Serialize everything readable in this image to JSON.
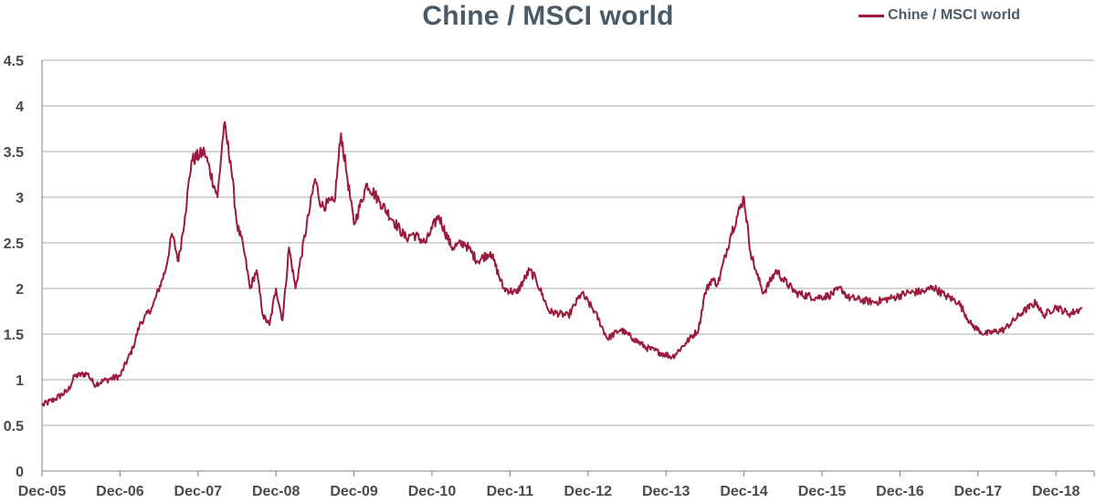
{
  "chart_data": {
    "type": "line",
    "title": "Chine / MSCI world",
    "xlabel": "",
    "ylabel": "",
    "legend": "top-right",
    "grid": true,
    "ylim": [
      0,
      4.5
    ],
    "yticks": [
      0,
      0.5,
      1,
      1.5,
      2,
      2.5,
      3,
      3.5,
      4,
      4.5
    ],
    "ytick_labels": [
      "0",
      "0.5",
      "1",
      "1.5",
      "2",
      "2.5",
      "3",
      "3.5",
      "4",
      "4.5"
    ],
    "xlim": [
      "2005-12",
      "2019-05"
    ],
    "xtick_labels": [
      "Dec-05",
      "Dec-06",
      "Dec-07",
      "Dec-08",
      "Dec-09",
      "Dec-10",
      "Dec-11",
      "Dec-12",
      "Dec-13",
      "Dec-14",
      "Dec-15",
      "Dec-16",
      "Dec-17",
      "Dec-18"
    ],
    "series": [
      {
        "name": "Chine / MSCI world",
        "color": "#9b1b3c",
        "points": [
          [
            "2005-12",
            0.72
          ],
          [
            "2006-02",
            0.79
          ],
          [
            "2006-04",
            0.88
          ],
          [
            "2006-05",
            1.04
          ],
          [
            "2006-07",
            1.07
          ],
          [
            "2006-08",
            0.95
          ],
          [
            "2006-10",
            1.0
          ],
          [
            "2006-12",
            1.04
          ],
          [
            "2007-02",
            1.35
          ],
          [
            "2007-03",
            1.6
          ],
          [
            "2007-05",
            1.8
          ],
          [
            "2007-07",
            2.2
          ],
          [
            "2007-08",
            2.6
          ],
          [
            "2007-09",
            2.3
          ],
          [
            "2007-10",
            2.8
          ],
          [
            "2007-11",
            3.4
          ],
          [
            "2008-01",
            3.5
          ],
          [
            "2008-03",
            3.0
          ],
          [
            "2008-04",
            3.8
          ],
          [
            "2008-05",
            3.4
          ],
          [
            "2008-06",
            2.7
          ],
          [
            "2008-07",
            2.45
          ],
          [
            "2008-08",
            2.0
          ],
          [
            "2008-09",
            2.2
          ],
          [
            "2008-10",
            1.7
          ],
          [
            "2008-11",
            1.6
          ],
          [
            "2008-12",
            2.0
          ],
          [
            "2009-01",
            1.65
          ],
          [
            "2009-02",
            2.45
          ],
          [
            "2009-03",
            2.0
          ],
          [
            "2009-05",
            2.8
          ],
          [
            "2009-06",
            3.2
          ],
          [
            "2009-07",
            2.9
          ],
          [
            "2009-09",
            2.95
          ],
          [
            "2009-10",
            3.7
          ],
          [
            "2009-11",
            3.2
          ],
          [
            "2009-12",
            2.7
          ],
          [
            "2010-02",
            3.15
          ],
          [
            "2010-04",
            2.95
          ],
          [
            "2010-06",
            2.75
          ],
          [
            "2010-08",
            2.55
          ],
          [
            "2010-09",
            2.6
          ],
          [
            "2010-11",
            2.5
          ],
          [
            "2011-01",
            2.8
          ],
          [
            "2011-03",
            2.45
          ],
          [
            "2011-05",
            2.5
          ],
          [
            "2011-07",
            2.3
          ],
          [
            "2011-09",
            2.4
          ],
          [
            "2011-11",
            2.0
          ],
          [
            "2012-01",
            1.95
          ],
          [
            "2012-03",
            2.2
          ],
          [
            "2012-04",
            2.1
          ],
          [
            "2012-06",
            1.75
          ],
          [
            "2012-09",
            1.7
          ],
          [
            "2012-11",
            1.95
          ],
          [
            "2013-01",
            1.75
          ],
          [
            "2013-03",
            1.45
          ],
          [
            "2013-05",
            1.55
          ],
          [
            "2013-07",
            1.45
          ],
          [
            "2013-09",
            1.35
          ],
          [
            "2013-11",
            1.3
          ],
          [
            "2014-01",
            1.25
          ],
          [
            "2014-03",
            1.4
          ],
          [
            "2014-05",
            1.55
          ],
          [
            "2014-06",
            1.95
          ],
          [
            "2014-07",
            2.1
          ],
          [
            "2014-08",
            2.05
          ],
          [
            "2014-10",
            2.6
          ],
          [
            "2014-12",
            3.0
          ],
          [
            "2015-01",
            2.4
          ],
          [
            "2015-02",
            2.15
          ],
          [
            "2015-03",
            1.95
          ],
          [
            "2015-05",
            2.2
          ],
          [
            "2015-06",
            2.1
          ],
          [
            "2015-08",
            1.95
          ],
          [
            "2015-11",
            1.9
          ],
          [
            "2016-01",
            1.92
          ],
          [
            "2016-03",
            2.0
          ],
          [
            "2016-04",
            1.9
          ],
          [
            "2016-08",
            1.85
          ],
          [
            "2016-11",
            1.9
          ],
          [
            "2017-01",
            1.95
          ],
          [
            "2017-04",
            1.97
          ],
          [
            "2017-05",
            2.02
          ],
          [
            "2017-07",
            1.92
          ],
          [
            "2017-09",
            1.85
          ],
          [
            "2017-11",
            1.6
          ],
          [
            "2018-01",
            1.5
          ],
          [
            "2018-04",
            1.55
          ],
          [
            "2018-07",
            1.75
          ],
          [
            "2018-09",
            1.85
          ],
          [
            "2018-10",
            1.7
          ],
          [
            "2018-12",
            1.8
          ],
          [
            "2019-02",
            1.72
          ],
          [
            "2019-04",
            1.78
          ]
        ]
      }
    ]
  }
}
